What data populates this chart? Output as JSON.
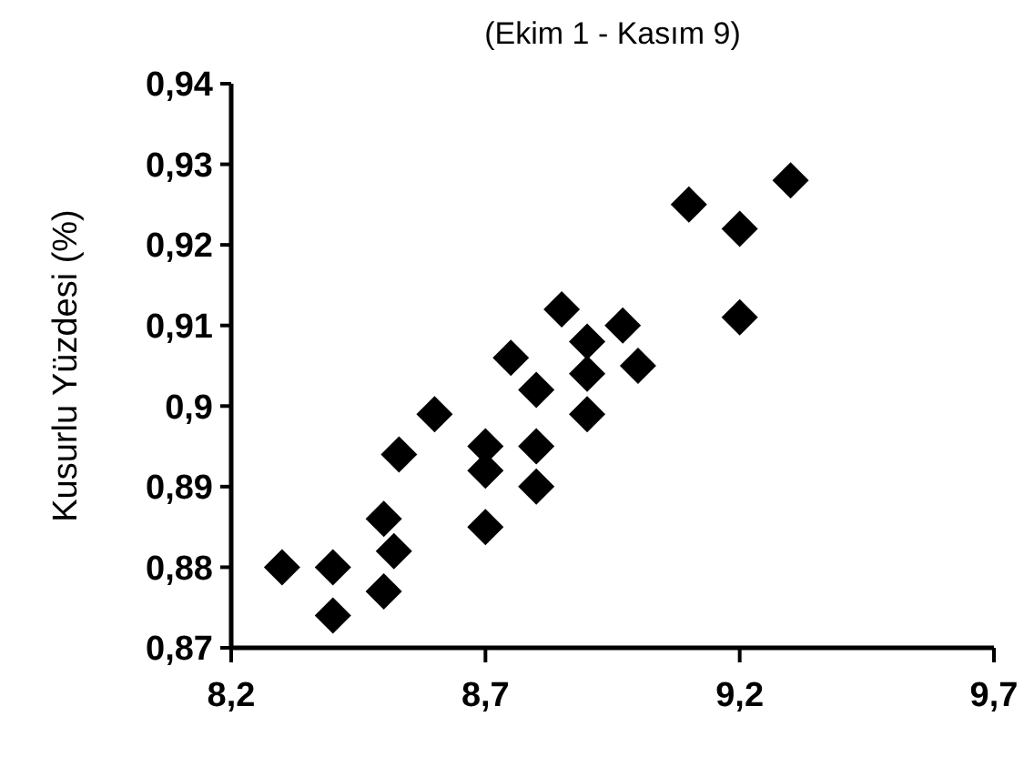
{
  "chart_data": {
    "type": "scatter",
    "title": "(Ekim 1 - Kasım 9)",
    "ylabel": "Kusurlu Yüzdesi (%)",
    "marker": "diamond",
    "grid": false,
    "x": [
      8.3,
      8.4,
      8.4,
      8.5,
      8.5,
      8.52,
      8.53,
      8.6,
      8.7,
      8.7,
      8.7,
      8.75,
      8.8,
      8.8,
      8.8,
      8.85,
      8.9,
      8.9,
      8.9,
      8.97,
      9.0,
      9.1,
      9.2,
      9.2,
      9.3
    ],
    "series": [
      {
        "color": "#000000",
        "values": [
          0.88,
          0.88,
          0.874,
          0.886,
          0.877,
          0.882,
          0.894,
          0.899,
          0.895,
          0.892,
          0.885,
          0.906,
          0.902,
          0.895,
          0.89,
          0.912,
          0.908,
          0.904,
          0.899,
          0.91,
          0.905,
          0.925,
          0.922,
          0.911,
          0.928
        ]
      }
    ],
    "xlim": [
      8.2,
      9.7
    ],
    "xticks": [
      {
        "value": 8.2,
        "label": "8,2"
      },
      {
        "value": 8.7,
        "label": "8,7"
      },
      {
        "value": 9.2,
        "label": "9,2"
      },
      {
        "value": 9.7,
        "label": "9,7"
      }
    ],
    "ylim": [
      0.87,
      0.94
    ],
    "yticks": [
      {
        "value": 0.87,
        "label": "0,87"
      },
      {
        "value": 0.88,
        "label": "0,88"
      },
      {
        "value": 0.89,
        "label": "0,89"
      },
      {
        "value": 0.9,
        "label": "0,9"
      },
      {
        "value": 0.91,
        "label": "0,91"
      },
      {
        "value": 0.92,
        "label": "0,92"
      },
      {
        "value": 0.93,
        "label": "0,93"
      },
      {
        "value": 0.94,
        "label": "0,94"
      }
    ]
  }
}
